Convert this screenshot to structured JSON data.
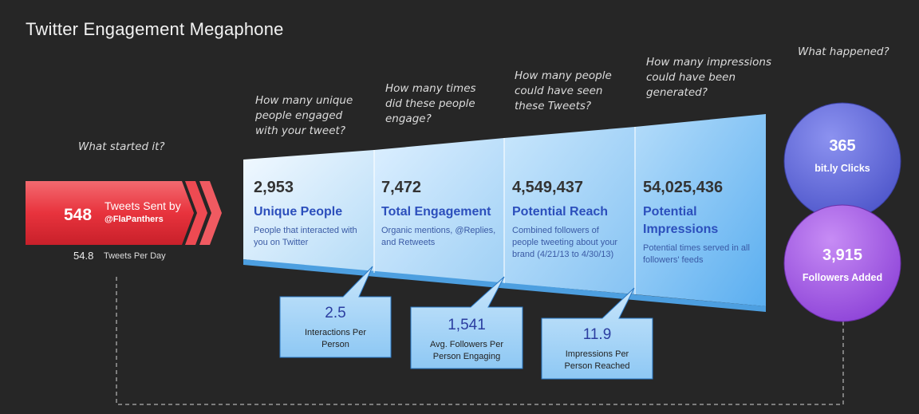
{
  "title": "Twitter Engagement Megaphone",
  "questions": {
    "started": "What started it?",
    "unique": "How many unique people engaged with your tweet?",
    "engage": "How many times did these people engage?",
    "reach": "How many people could have seen these Tweets?",
    "impressions": "How many impressions could have been generated?",
    "happened": "What happened?"
  },
  "sent": {
    "count": "548",
    "label": "Tweets Sent by",
    "handle": "@FlaPanthers",
    "per_day": "54.8",
    "per_day_label": "Tweets Per Day"
  },
  "sections": [
    {
      "value": "2,953",
      "label": "Unique People",
      "desc": "People that interacted with you on Twitter"
    },
    {
      "value": "7,472",
      "label": "Total Engagement",
      "desc": "Organic mentions, @Replies, and Retweets"
    },
    {
      "value": "4,549,437",
      "label": "Potential Reach",
      "desc": "Combined followers of people tweeting about your brand (4/21/13 to 4/30/13)"
    },
    {
      "value": "54,025,436",
      "label": "Potential Impressions",
      "desc": "Potential times served in all followers' feeds"
    }
  ],
  "callouts": [
    {
      "value": "2.5",
      "label": "Interactions Per Person"
    },
    {
      "value": "1,541",
      "label": "Avg. Followers Per Person Engaging"
    },
    {
      "value": "11.9",
      "label": "Impressions Per Person Reached"
    }
  ],
  "results": [
    {
      "value": "365",
      "label": "bit.ly Clicks"
    },
    {
      "value": "3,915",
      "label": "Followers Added"
    }
  ],
  "colors": {
    "background": "#262626",
    "red": "#e8333d",
    "blue_light": "#d6ecfb",
    "blue_dark": "#5aaef0",
    "circle_blue": "#5b64d8",
    "circle_purple": "#9b4fe0"
  }
}
